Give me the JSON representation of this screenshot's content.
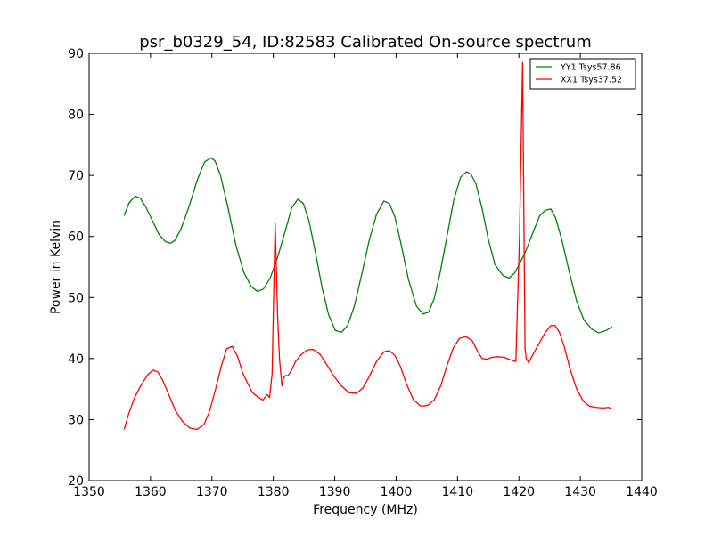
{
  "chart_data": {
    "type": "line",
    "title": "psr_b0329_54, ID:82583 Calibrated On-source spectrum",
    "xlabel": "Frequency (MHz)",
    "ylabel": "Power in Kelvin",
    "xlim": [
      1350,
      1440
    ],
    "ylim": [
      20,
      90
    ],
    "xticks": [
      1350,
      1360,
      1370,
      1380,
      1390,
      1400,
      1410,
      1420,
      1430,
      1440
    ],
    "yticks": [
      20,
      30,
      40,
      50,
      60,
      70,
      80,
      90
    ],
    "grid": false,
    "legend_position": "top-right",
    "series": [
      {
        "name": "YY1 Tsys57.86",
        "color": "#008000",
        "x": [
          1355.7,
          1356.5,
          1357.5,
          1358.3,
          1359.2,
          1360.3,
          1361.4,
          1362.5,
          1363.3,
          1364.0,
          1365.0,
          1366.3,
          1367.6,
          1368.8,
          1369.8,
          1370.5,
          1371.4,
          1372.6,
          1373.9,
          1375.2,
          1376.4,
          1377.4,
          1378.4,
          1379.5,
          1380.7,
          1382.0,
          1383.0,
          1384.0,
          1384.9,
          1385.8,
          1386.9,
          1387.9,
          1389.0,
          1390.1,
          1391.1,
          1392.1,
          1393.2,
          1394.4,
          1395.6,
          1396.8,
          1398.0,
          1398.9,
          1399.8,
          1400.8,
          1402.0,
          1403.3,
          1404.4,
          1405.3,
          1406.2,
          1407.2,
          1408.3,
          1409.4,
          1410.5,
          1411.5,
          1412.2,
          1413.0,
          1414.0,
          1415.0,
          1416.1,
          1417.4,
          1418.4,
          1419.3,
          1420.2,
          1421.2,
          1422.3,
          1423.4,
          1424.3,
          1425.2,
          1426.0,
          1427.0,
          1428.2,
          1429.4,
          1430.6,
          1431.9,
          1433.0,
          1434.2,
          1435.2
        ],
        "y": [
          63.4,
          65.5,
          66.6,
          66.3,
          64.9,
          62.6,
          60.3,
          59.1,
          58.9,
          59.4,
          61.3,
          65.0,
          69.2,
          72.2,
          72.9,
          72.4,
          70.0,
          64.8,
          58.6,
          54.1,
          51.8,
          51.0,
          51.4,
          53.2,
          56.6,
          61.1,
          64.7,
          66.1,
          65.4,
          62.6,
          57.2,
          51.8,
          47.2,
          44.6,
          44.3,
          45.4,
          48.6,
          53.8,
          59.3,
          63.6,
          65.8,
          65.4,
          63.2,
          58.8,
          53.0,
          48.6,
          47.3,
          47.6,
          49.8,
          54.2,
          60.1,
          66.0,
          69.7,
          70.6,
          70.2,
          68.6,
          64.6,
          59.6,
          55.4,
          53.6,
          53.2,
          54.0,
          55.7,
          57.8,
          60.7,
          63.4,
          64.3,
          64.5,
          63.0,
          59.4,
          54.2,
          49.4,
          46.3,
          44.8,
          44.2,
          44.6,
          45.2
        ]
      },
      {
        "name": "XX1 Tsys37.52",
        "color": "#ff0000",
        "x": [
          1355.7,
          1356.4,
          1357.4,
          1358.4,
          1359.5,
          1360.4,
          1361.2,
          1362.0,
          1363.0,
          1364.1,
          1365.2,
          1366.4,
          1367.6,
          1368.7,
          1369.6,
          1370.6,
          1371.6,
          1372.4,
          1373.3,
          1374.2,
          1375.0,
          1375.7,
          1376.6,
          1377.5,
          1378.3,
          1379.0,
          1379.4,
          1379.8,
          1380.3,
          1380.7,
          1381.0,
          1381.4,
          1381.7,
          1382.0,
          1382.4,
          1383.0,
          1383.6,
          1384.5,
          1385.5,
          1386.5,
          1387.6,
          1388.7,
          1389.8,
          1391.0,
          1392.3,
          1393.6,
          1394.6,
          1395.6,
          1396.8,
          1398.0,
          1398.9,
          1399.8,
          1400.7,
          1401.7,
          1402.8,
          1404.0,
          1405.1,
          1406.2,
          1407.3,
          1408.3,
          1409.3,
          1410.3,
          1411.4,
          1412.4,
          1413.2,
          1414.0,
          1414.8,
          1415.6,
          1416.5,
          1417.6,
          1418.6,
          1419.5,
          1420.1,
          1420.6,
          1420.8,
          1421.0,
          1421.2,
          1421.6,
          1422.3,
          1423.3,
          1424.3,
          1425.2,
          1425.9,
          1426.6,
          1427.4,
          1428.3,
          1429.4,
          1430.5,
          1431.5,
          1432.6,
          1433.7,
          1434.6,
          1435.2
        ],
        "y": [
          28.4,
          30.8,
          33.6,
          35.5,
          37.3,
          38.1,
          37.8,
          36.4,
          34.0,
          31.4,
          29.7,
          28.6,
          28.4,
          29.2,
          31.3,
          35.0,
          39.0,
          41.6,
          42.0,
          40.3,
          37.7,
          36.2,
          34.4,
          33.7,
          33.2,
          34.1,
          33.6,
          37.5,
          62.3,
          47.0,
          40.0,
          35.5,
          36.9,
          37.2,
          37.2,
          38.1,
          39.5,
          40.6,
          41.4,
          41.5,
          40.7,
          39.0,
          37.2,
          35.6,
          34.4,
          34.3,
          35.2,
          37.0,
          39.5,
          41.1,
          41.3,
          40.5,
          38.7,
          35.8,
          33.3,
          32.2,
          32.3,
          33.2,
          35.6,
          38.9,
          41.7,
          43.3,
          43.6,
          42.9,
          41.3,
          40.0,
          39.9,
          40.2,
          40.3,
          40.2,
          39.8,
          39.5,
          60.0,
          88.5,
          65.0,
          41.6,
          40.0,
          39.3,
          40.7,
          42.5,
          44.3,
          45.4,
          45.4,
          44.3,
          41.9,
          38.4,
          35.0,
          33.0,
          32.2,
          32.0,
          31.9,
          32.0,
          31.7
        ]
      }
    ]
  }
}
